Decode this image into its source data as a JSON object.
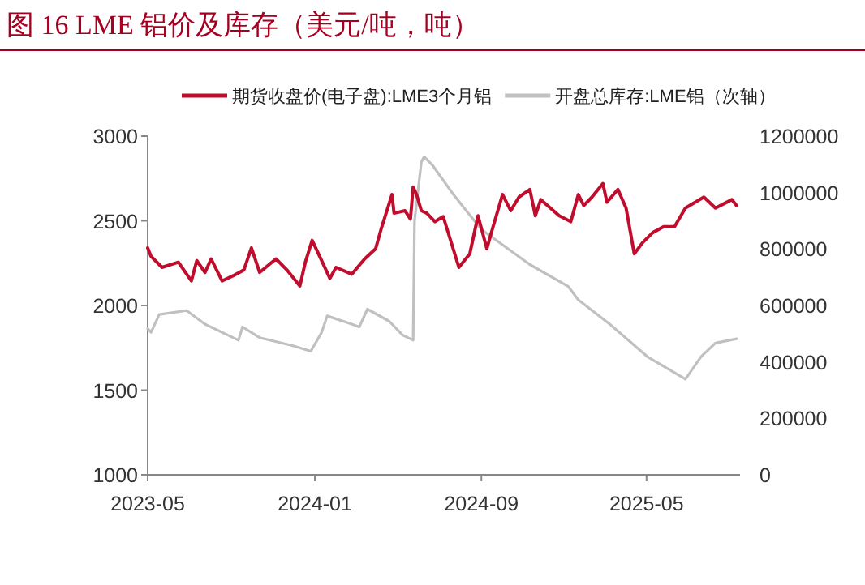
{
  "chart_data": {
    "type": "line",
    "title": "图 16  LME 铝价及库存（美元/吨，吨）",
    "xlim": [
      "2023-05-01",
      "2025-09-15"
    ],
    "xticks": [
      {
        "value": "2023-05-01",
        "label": "2023-05"
      },
      {
        "value": "2024-01-01",
        "label": "2024-01"
      },
      {
        "value": "2024-09-01",
        "label": "2024-09"
      },
      {
        "value": "2025-05-01",
        "label": "2025-05"
      }
    ],
    "ylim": [
      1000,
      3000
    ],
    "yticks": [
      1000,
      1500,
      2000,
      2500,
      3000
    ],
    "y2lim": [
      0,
      1200000
    ],
    "y2ticks": [
      0,
      200000,
      400000,
      600000,
      800000,
      1000000,
      1200000
    ],
    "legend": "top",
    "grid": false,
    "line_style": "solid",
    "series": [
      {
        "name": "期货收盘价(电子盘):LME3个月铝",
        "color": "#c00d2e",
        "x": [
          "2023-05-01",
          "2023-05-06",
          "2023-05-22",
          "2023-06-15",
          "2023-07-04",
          "2023-07-12",
          "2023-07-24",
          "2023-08-02",
          "2023-08-18",
          "2023-09-03",
          "2023-09-19",
          "2023-09-30",
          "2023-10-12",
          "2023-11-05",
          "2023-11-21",
          "2023-12-10",
          "2023-12-18",
          "2023-12-28",
          "2024-01-08",
          "2024-01-23",
          "2024-02-01",
          "2024-02-24",
          "2024-03-14",
          "2024-03-30",
          "2024-04-07",
          "2024-04-23",
          "2024-04-26",
          "2024-05-12",
          "2024-05-20",
          "2024-05-24",
          "2024-05-29",
          "2024-06-05",
          "2024-06-13",
          "2024-06-25",
          "2024-07-07",
          "2024-07-22",
          "2024-07-30",
          "2024-08-15",
          "2024-08-27",
          "2024-09-09",
          "2024-09-17",
          "2024-10-02",
          "2024-10-14",
          "2024-10-26",
          "2024-11-11",
          "2024-11-19",
          "2024-11-27",
          "2024-12-24",
          "2025-01-10",
          "2025-01-21",
          "2025-01-29",
          "2025-02-10",
          "2025-02-26",
          "2025-03-04",
          "2025-03-20",
          "2025-04-01",
          "2025-04-13",
          "2025-04-25",
          "2025-05-10",
          "2025-05-26",
          "2025-06-11",
          "2025-06-27",
          "2025-07-24",
          "2025-08-10",
          "2025-09-03",
          "2025-09-10"
        ],
        "values": [
          2340,
          2290,
          2225,
          2255,
          2145,
          2265,
          2195,
          2275,
          2145,
          2175,
          2210,
          2340,
          2195,
          2275,
          2210,
          2115,
          2255,
          2385,
          2290,
          2160,
          2225,
          2185,
          2275,
          2335,
          2450,
          2655,
          2545,
          2560,
          2510,
          2700,
          2655,
          2560,
          2545,
          2495,
          2525,
          2330,
          2225,
          2305,
          2530,
          2335,
          2450,
          2655,
          2560,
          2640,
          2685,
          2530,
          2625,
          2530,
          2495,
          2655,
          2590,
          2640,
          2720,
          2610,
          2685,
          2575,
          2305,
          2370,
          2430,
          2465,
          2465,
          2575,
          2640,
          2575,
          2625,
          2590
        ]
      },
      {
        "name": "开盘总库存:LME铝（次轴）",
        "color": "#c0c0c0",
        "axis": "y2",
        "x": [
          "2023-05-01",
          "2023-05-06",
          "2023-05-18",
          "2023-06-27",
          "2023-07-24",
          "2023-09-11",
          "2023-09-17",
          "2023-10-12",
          "2023-11-29",
          "2023-12-26",
          "2024-01-11",
          "2024-01-19",
          "2024-02-24",
          "2024-03-06",
          "2024-03-18",
          "2024-04-19",
          "2024-05-08",
          "2024-05-24",
          "2024-05-26",
          "2024-06-05",
          "2024-06-09",
          "2024-06-21",
          "2024-07-22",
          "2024-09-01",
          "2024-11-11",
          "2025-01-06",
          "2025-01-21",
          "2025-03-08",
          "2025-05-02",
          "2025-06-27",
          "2025-07-20",
          "2025-08-10",
          "2025-09-10"
        ],
        "values": [
          518000,
          505000,
          568000,
          582000,
          534000,
          477000,
          524000,
          486000,
          458000,
          438000,
          505000,
          563000,
          534000,
          524000,
          587000,
          544000,
          496000,
          477000,
          898000,
          1108000,
          1127000,
          1098000,
          993000,
          869000,
          745000,
          668000,
          620000,
          534000,
          419000,
          339000,
          419000,
          467000,
          482000
        ]
      }
    ]
  }
}
